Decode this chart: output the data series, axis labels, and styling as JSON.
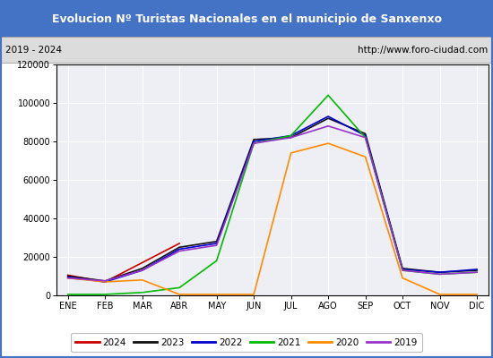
{
  "title": "Evolucion Nº Turistas Nacionales en el municipio de Sanxenxo",
  "subtitle_left": "2019 - 2024",
  "subtitle_right": "http://www.foro-ciudad.com",
  "title_bg_color": "#4472c4",
  "title_text_color": "#ffffff",
  "subtitle_bg_color": "#dcdcdc",
  "plot_bg_color": "#eeeef5",
  "months": [
    "ENE",
    "FEB",
    "MAR",
    "ABR",
    "MAY",
    "JUN",
    "JUL",
    "AGO",
    "SEP",
    "OCT",
    "NOV",
    "DIC"
  ],
  "ylim": [
    0,
    120000
  ],
  "yticks": [
    0,
    20000,
    40000,
    60000,
    80000,
    100000,
    120000
  ],
  "series": {
    "2024": {
      "color": "#cc0000",
      "data": [
        10500,
        7000,
        17000,
        27000,
        null,
        null,
        null,
        null,
        null,
        null,
        null,
        null
      ]
    },
    "2023": {
      "color": "#111111",
      "data": [
        10000,
        7500,
        14000,
        25000,
        28000,
        81000,
        82000,
        92000,
        84000,
        14000,
        12000,
        13000
      ]
    },
    "2022": {
      "color": "#0000cc",
      "data": [
        9500,
        7000,
        13000,
        24000,
        27000,
        80000,
        83000,
        93000,
        83000,
        13500,
        12000,
        13500
      ]
    },
    "2021": {
      "color": "#00bb00",
      "data": [
        500,
        500,
        1500,
        4000,
        18000,
        79000,
        83000,
        104000,
        82000,
        13000,
        11000,
        12000
      ]
    },
    "2020": {
      "color": "#ff8c00",
      "data": [
        9000,
        7000,
        8000,
        500,
        500,
        500,
        74000,
        79000,
        72000,
        9000,
        500,
        500
      ]
    },
    "2019": {
      "color": "#9933cc",
      "data": [
        9000,
        7500,
        13000,
        23000,
        26000,
        79000,
        82000,
        88000,
        82000,
        13000,
        11000,
        12000
      ]
    }
  },
  "legend_order": [
    "2024",
    "2023",
    "2022",
    "2021",
    "2020",
    "2019"
  ]
}
